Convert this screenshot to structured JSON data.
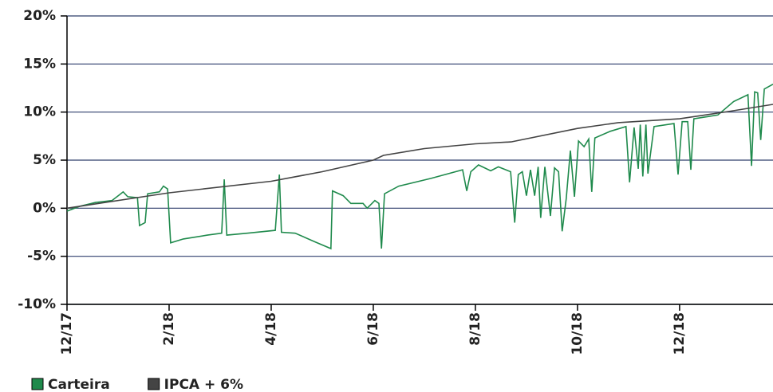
{
  "chart_data": {
    "type": "line",
    "xlim": [
      0,
      13.83
    ],
    "xticks": [
      {
        "value": 0,
        "label": "12/17"
      },
      {
        "value": 2,
        "label": "2/18"
      },
      {
        "value": 4,
        "label": "4/18"
      },
      {
        "value": 6,
        "label": "6/18"
      },
      {
        "value": 8,
        "label": "8/18"
      },
      {
        "value": 10,
        "label": "10/18"
      },
      {
        "value": 12,
        "label": "12/18"
      }
    ],
    "ylim": [
      -10,
      20
    ],
    "yticks": [
      {
        "value": -10,
        "label": "-10%"
      },
      {
        "value": -5,
        "label": "-5%"
      },
      {
        "value": 0,
        "label": "0%"
      },
      {
        "value": 5,
        "label": "5%"
      },
      {
        "value": 10,
        "label": "10%"
      },
      {
        "value": 15,
        "label": "15%"
      },
      {
        "value": 20,
        "label": "20%"
      }
    ],
    "grid": true,
    "legend": "bottom-left",
    "series": [
      {
        "name": "Carteira",
        "color": "#1f8a4c",
        "x": [
          0,
          0.25,
          0.56,
          0.88,
          1.03,
          1.1,
          1.19,
          1.38,
          1.42,
          1.53,
          1.58,
          1.81,
          1.89,
          1.97,
          2.03,
          2.28,
          2.75,
          3.03,
          3.08,
          3.13,
          3.53,
          4.08,
          4.16,
          4.2,
          4.47,
          4.86,
          5.17,
          5.2,
          5.41,
          5.56,
          5.8,
          5.88,
          6.03,
          6.11,
          6.16,
          6.22,
          6.5,
          7.13,
          7.75,
          7.83,
          7.91,
          8.06,
          8.3,
          8.45,
          8.69,
          8.77,
          8.84,
          8.92,
          9.0,
          9.08,
          9.16,
          9.23,
          9.28,
          9.36,
          9.47,
          9.55,
          9.63,
          9.7,
          9.78,
          9.86,
          9.94,
          10.02,
          10.13,
          10.22,
          10.28,
          10.34,
          10.64,
          10.95,
          11.02,
          11.11,
          11.19,
          11.23,
          11.28,
          11.34,
          11.38,
          11.5,
          11.89,
          11.97,
          12.05,
          12.16,
          12.22,
          12.28,
          12.75,
          13.06,
          13.34,
          13.41,
          13.47,
          13.53,
          13.59,
          13.66,
          13.83
        ],
        "values": [
          -0.3,
          0.2,
          0.6,
          0.8,
          1.4,
          1.7,
          1.2,
          1.1,
          -1.8,
          -1.5,
          1.5,
          1.7,
          2.3,
          2.0,
          -3.6,
          -3.2,
          -2.8,
          -2.6,
          3.0,
          -2.8,
          -2.6,
          -2.3,
          3.5,
          -2.5,
          -2.6,
          -3.5,
          -4.2,
          1.8,
          1.3,
          0.5,
          0.5,
          0.0,
          0.8,
          0.5,
          -4.2,
          1.5,
          2.3,
          3.1,
          4.0,
          1.8,
          3.8,
          4.5,
          3.9,
          4.3,
          3.8,
          -1.5,
          3.5,
          3.8,
          1.3,
          4.0,
          1.3,
          4.3,
          -1.0,
          4.3,
          -0.8,
          4.2,
          3.8,
          -2.4,
          1.0,
          6.0,
          1.2,
          7.0,
          6.4,
          7.2,
          1.7,
          7.3,
          8.0,
          8.5,
          2.7,
          8.4,
          4.1,
          8.7,
          3.3,
          8.7,
          3.6,
          8.5,
          8.8,
          3.5,
          9.0,
          9.0,
          4.0,
          9.3,
          9.7,
          11.1,
          11.8,
          4.4,
          12.1,
          12.0,
          7.1,
          12.4,
          12.9
        ]
      },
      {
        "name": "IPCA + 6%",
        "color": "#444444",
        "x": [
          0,
          2,
          4,
          5,
          6,
          6.2,
          7,
          8,
          8.7,
          10,
          10.8,
          12,
          13,
          13.83
        ],
        "values": [
          0,
          1.6,
          2.8,
          3.8,
          5.0,
          5.5,
          6.2,
          6.7,
          6.9,
          8.3,
          8.9,
          9.3,
          10.1,
          10.8
        ]
      }
    ]
  }
}
